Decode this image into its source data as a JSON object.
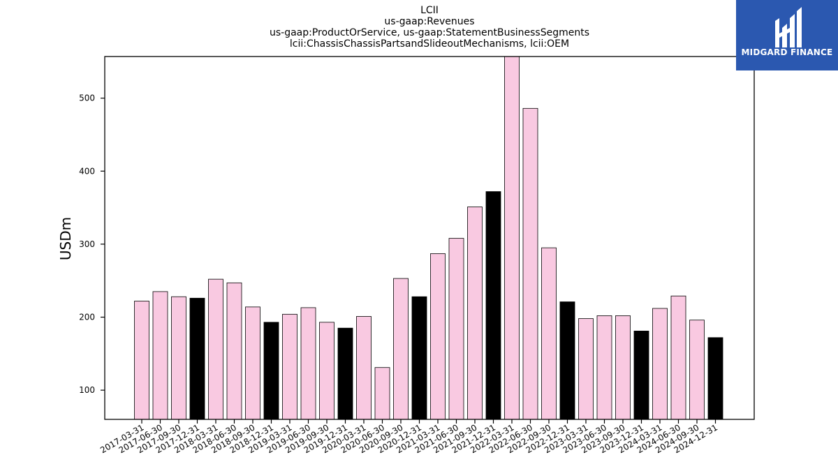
{
  "header": {
    "title_lines": [
      "LCII",
      "us-gaap:Revenues",
      "us-gaap:ProductOrService, us-gaap:StatementBusinessSegments",
      "lcii:ChassisChassisPartsandSlideoutMechanisms, lcii:OEM"
    ]
  },
  "logo": {
    "text": "MIDGARD FINANCE",
    "background": "#2b58b0",
    "text_color": "#ffffff"
  },
  "chart_data": {
    "type": "bar",
    "title": "LCII us-gaap:Revenues us-gaap:ProductOrService, us-gaap:StatementBusinessSegments lcii:ChassisChassisPartsandSlideoutMechanisms, lcii:OEM",
    "xlabel": "",
    "ylabel": "USDm",
    "ylim": [
      60,
      557
    ],
    "yticks": [
      100,
      200,
      300,
      400,
      500
    ],
    "grid": false,
    "colors": {
      "quarter": "#f9c9e1",
      "year_end": "#000000",
      "edge": "#000000"
    },
    "categories": [
      "2017-03-31",
      "2017-06-30",
      "2017-09-30",
      "2017-12-31",
      "2018-03-31",
      "2018-06-30",
      "2018-09-30",
      "2018-12-31",
      "2019-03-31",
      "2019-06-30",
      "2019-09-30",
      "2019-12-31",
      "2020-03-31",
      "2020-06-30",
      "2020-09-30",
      "2020-12-31",
      "2021-03-31",
      "2021-06-30",
      "2021-09-30",
      "2021-12-31",
      "2022-03-31",
      "2022-06-30",
      "2022-09-30",
      "2022-12-31",
      "2023-03-31",
      "2023-06-30",
      "2023-09-30",
      "2023-12-31",
      "2024-03-31",
      "2024-06-30",
      "2024-09-30",
      "2024-12-31"
    ],
    "values": [
      222,
      235,
      228,
      226,
      252,
      247,
      214,
      193,
      204,
      213,
      193,
      185,
      201,
      131,
      253,
      228,
      287,
      308,
      351,
      372,
      560,
      486,
      295,
      221,
      198,
      202,
      202,
      181,
      212,
      229,
      196,
      172
    ]
  }
}
